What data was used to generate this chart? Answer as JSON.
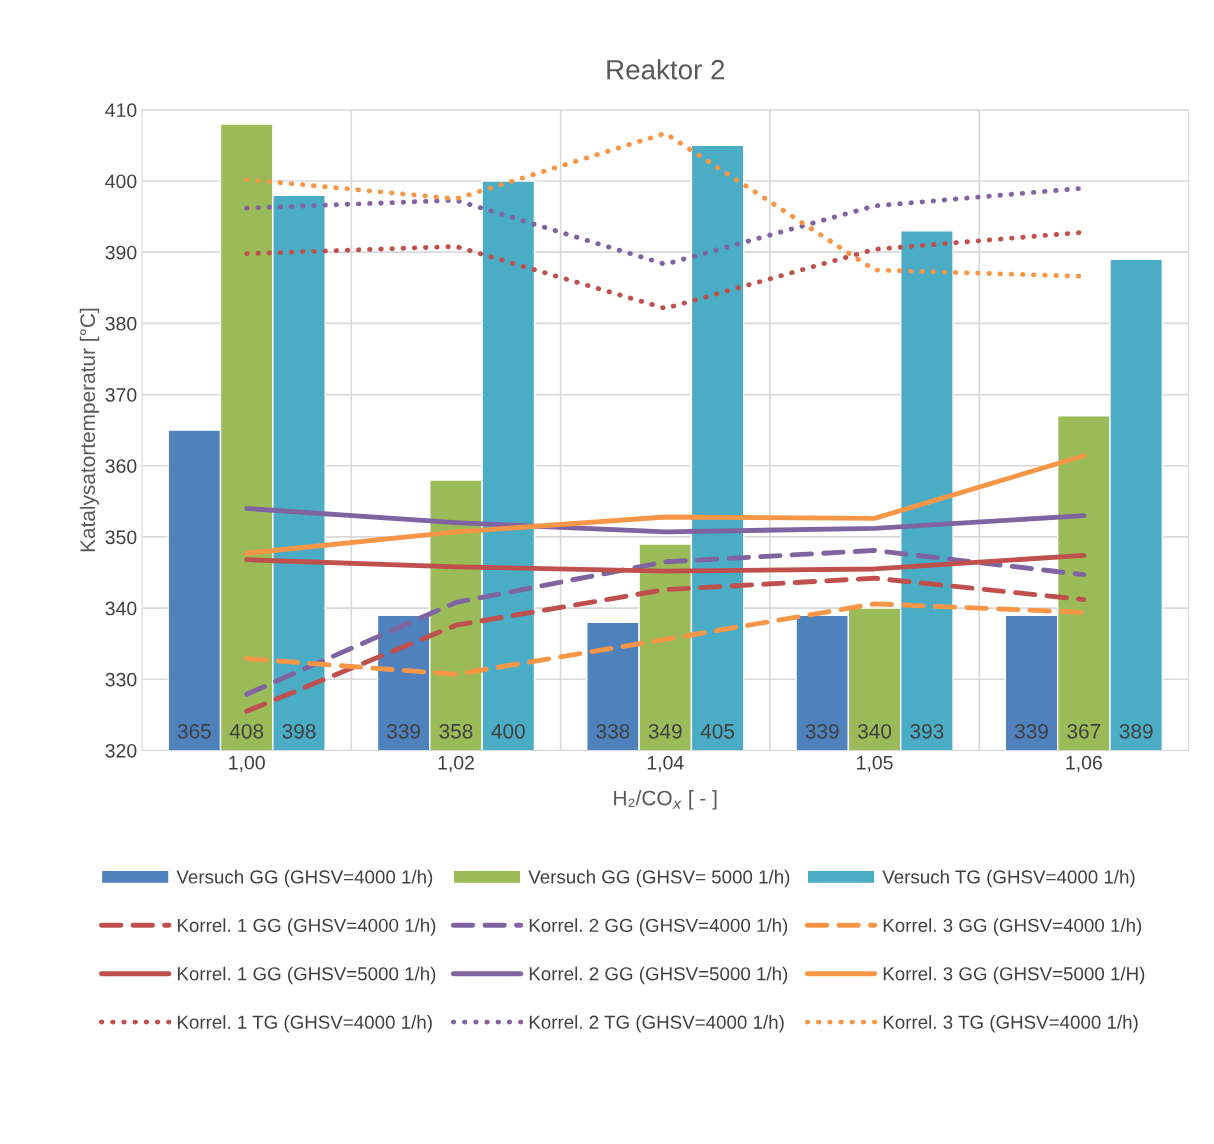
{
  "chart_data": {
    "type": "bar",
    "title": "Reaktor 2",
    "xlabel": "H₂/CO$_{x}$ [ - ]",
    "ylabel": "Katalysatortemperatur [°C]",
    "categories": [
      "1,00",
      "1,02",
      "1,04",
      "1,05",
      "1,06"
    ],
    "ylim": [
      320,
      410
    ],
    "yticks": [
      320,
      330,
      340,
      350,
      360,
      370,
      380,
      390,
      400,
      410
    ],
    "grid": true,
    "legend": "bottom",
    "series": [
      {
        "name": "Versuch GG (GHSV=4000 1/h)",
        "color": "#4f81bd",
        "values": [
          365,
          339,
          338,
          339,
          339
        ],
        "value_labels": [
          "365",
          "339",
          "338",
          "339",
          "339"
        ]
      },
      {
        "name": "Versuch GG (GHSV= 5000 1/h)",
        "color": "#9bbb59",
        "values": [
          408,
          358,
          349,
          340,
          367
        ],
        "value_labels": [
          "408",
          "358",
          "349",
          "340",
          "367"
        ]
      },
      {
        "name": "Versuch TG (GHSV=4000 1/h)",
        "color": "#4bacc6",
        "values": [
          398,
          400,
          405,
          393,
          389
        ],
        "value_labels": [
          "398",
          "400",
          "405",
          "393",
          "389"
        ]
      },
      {
        "name": "Korrel. 1 GG (GHSV=4000 1/h)",
        "type": "line",
        "line_style": "dashed",
        "color": "#c0504d",
        "values": [
          325.5,
          337.6,
          342.6,
          344.2,
          341.2
        ]
      },
      {
        "name": "Korrel. 2 GG (GHSV=4000 1/h)",
        "type": "line",
        "line_style": "dashed",
        "color": "#8064a2",
        "values": [
          327.9,
          340.8,
          346.5,
          348.1,
          344.7
        ]
      },
      {
        "name": "Korrel. 3 GG (GHSV=4000 1/h)",
        "type": "line",
        "line_style": "dashed",
        "color": "#f79646",
        "values": [
          332.9,
          330.7,
          335.6,
          340.6,
          339.4
        ]
      },
      {
        "name": "Korrel. 1 GG (GHSV=5000 1/h)",
        "type": "line",
        "line_style": "solid",
        "color": "#c0504d",
        "values": [
          346.8,
          345.8,
          345.2,
          345.5,
          347.4
        ]
      },
      {
        "name": "Korrel. 2 GG (GHSV=5000 1/h)",
        "type": "line",
        "line_style": "solid",
        "color": "#8064a2",
        "values": [
          354,
          352,
          350.7,
          351.2,
          353
        ]
      },
      {
        "name": "Korrel. 3 GG (GHSV=5000 1/H)",
        "type": "line",
        "line_style": "solid",
        "color": "#f79646",
        "values": [
          347.7,
          350.7,
          352.8,
          352.6,
          361.4
        ]
      },
      {
        "name": "Korrel. 1 TG (GHSV=4000 1/h)",
        "type": "line",
        "line_style": "dotted",
        "color": "#c0504d",
        "values": [
          389.8,
          390.8,
          382.1,
          390.4,
          392.8
        ]
      },
      {
        "name": "Korrel. 2 TG (GHSV=4000 1/h)",
        "type": "line",
        "line_style": "dotted",
        "color": "#8064a2",
        "values": [
          396.2,
          397.3,
          388.3,
          396.5,
          399
        ]
      },
      {
        "name": "Korrel. 3 TG (GHSV=4000 1/h)",
        "type": "line",
        "line_style": "dotted",
        "color": "#f79646",
        "values": [
          400.2,
          397.5,
          406.7,
          387.5,
          386.6
        ]
      }
    ]
  }
}
